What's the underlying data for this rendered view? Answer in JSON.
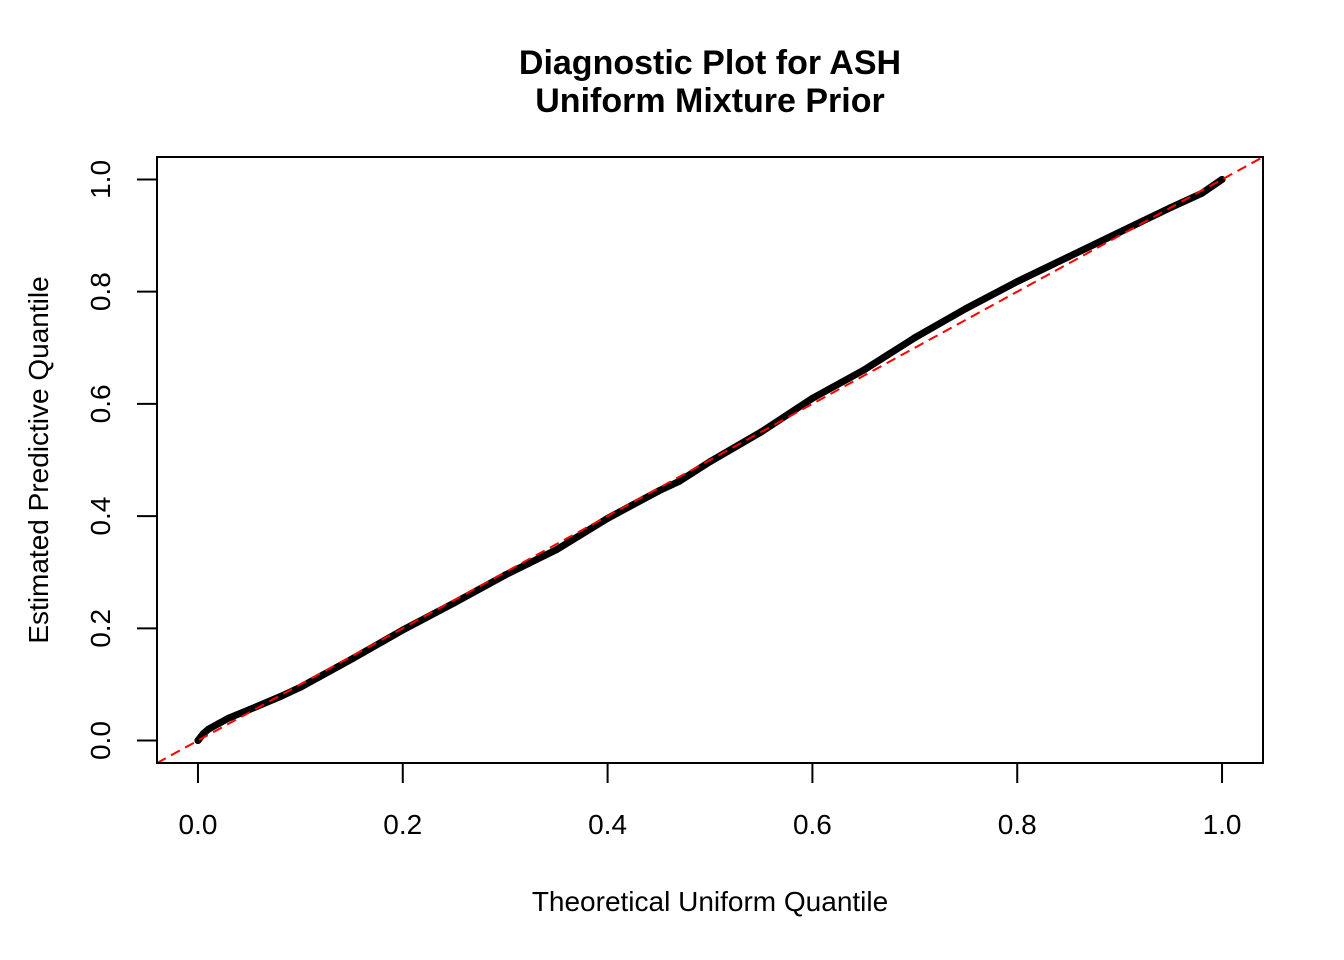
{
  "chart_data": {
    "type": "scatter",
    "title": "Diagnostic Plot for ASH",
    "subtitle": "Uniform Mixture Prior",
    "xlabel": "Theoretical Uniform Quantile",
    "ylabel": "Estimated Predictive Quantile",
    "xlim": [
      -0.04,
      1.04
    ],
    "ylim": [
      -0.04,
      1.04
    ],
    "xticks": [
      "0.0",
      "0.2",
      "0.4",
      "0.6",
      "0.8",
      "1.0"
    ],
    "yticks": [
      "0.0",
      "0.2",
      "0.4",
      "0.6",
      "0.8",
      "1.0"
    ],
    "grid": false,
    "reference_line": {
      "slope": 1,
      "intercept": 0,
      "style": "dashed",
      "color": "#ff0000"
    },
    "point_color": "#000000",
    "x": [
      0.0,
      0.005,
      0.01,
      0.02,
      0.03,
      0.05,
      0.08,
      0.1,
      0.15,
      0.2,
      0.25,
      0.3,
      0.35,
      0.4,
      0.45,
      0.47,
      0.5,
      0.55,
      0.6,
      0.65,
      0.7,
      0.75,
      0.8,
      0.85,
      0.9,
      0.95,
      0.98,
      1.0
    ],
    "y": [
      0.0,
      0.012,
      0.02,
      0.03,
      0.04,
      0.055,
      0.078,
      0.095,
      0.145,
      0.197,
      0.245,
      0.295,
      0.34,
      0.396,
      0.445,
      0.462,
      0.497,
      0.55,
      0.61,
      0.66,
      0.718,
      0.77,
      0.818,
      0.862,
      0.906,
      0.95,
      0.975,
      1.0
    ]
  }
}
